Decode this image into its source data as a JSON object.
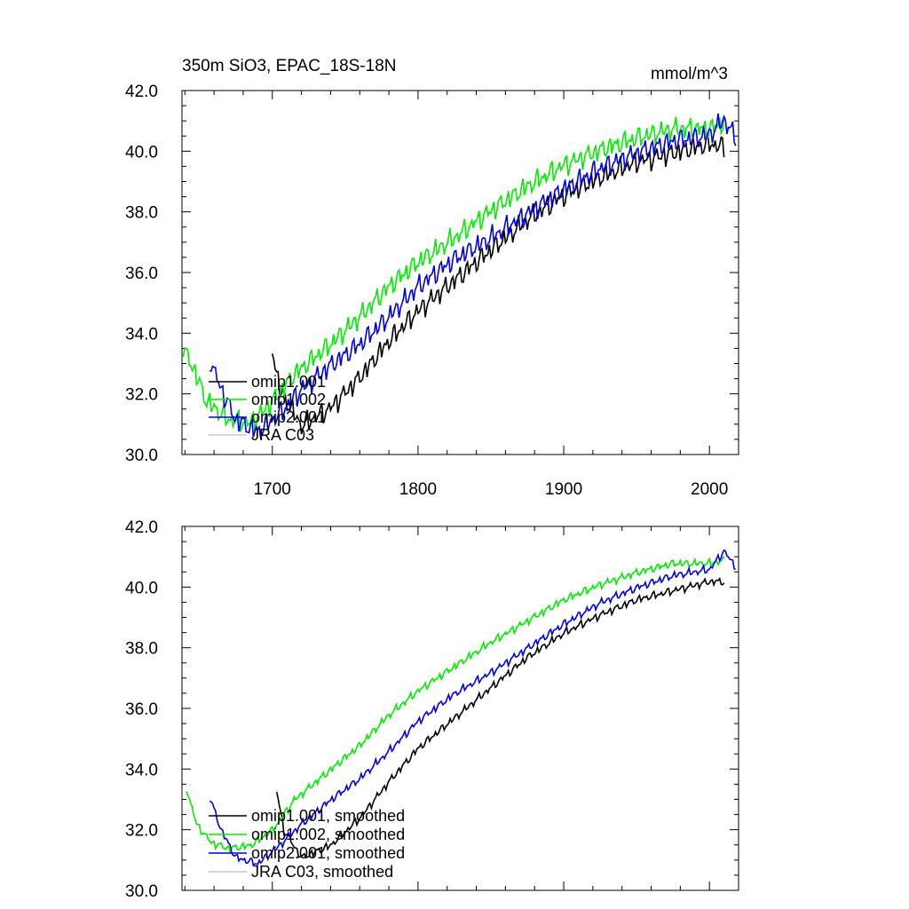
{
  "chart_data": [
    {
      "type": "line",
      "title": "350m SiO3, EPAC_18S-18N",
      "units": "mmol/m^3",
      "xlim": [
        1638,
        2020
      ],
      "ylim": [
        30,
        42
      ],
      "yticks": [
        "30.0",
        "32.0",
        "34.0",
        "36.0",
        "38.0",
        "40.0",
        "42.0"
      ],
      "xticks": [
        "1700",
        "1800",
        "1900",
        "2000"
      ],
      "legend_position": "lower-left",
      "series": [
        {
          "name": "omip1.001",
          "color": "#000000",
          "x_start": 1700,
          "x_end": 2010,
          "anchors": [
            [
              1700,
              33.6
            ],
            [
              1705,
              32.2
            ],
            [
              1720,
              31.0
            ],
            [
              1740,
              31.6
            ],
            [
              1760,
              32.6
            ],
            [
              1780,
              33.8
            ],
            [
              1800,
              34.8
            ],
            [
              1820,
              35.6
            ],
            [
              1850,
              36.8
            ],
            [
              1875,
              37.8
            ],
            [
              1900,
              38.6
            ],
            [
              1925,
              39.2
            ],
            [
              1950,
              39.7
            ],
            [
              1975,
              40.0
            ],
            [
              2000,
              40.3
            ],
            [
              2010,
              40.2
            ]
          ],
          "noise": 0.55
        },
        {
          "name": "omip1.002",
          "color": "#00ee00",
          "x_start": 1638,
          "x_end": 2010,
          "anchors": [
            [
              1638,
              33.6
            ],
            [
              1645,
              33.0
            ],
            [
              1655,
              31.8
            ],
            [
              1670,
              31.2
            ],
            [
              1685,
              31.1
            ],
            [
              1700,
              31.8
            ],
            [
              1715,
              32.7
            ],
            [
              1740,
              33.7
            ],
            [
              1760,
              34.6
            ],
            [
              1780,
              35.6
            ],
            [
              1800,
              36.4
            ],
            [
              1825,
              37.2
            ],
            [
              1850,
              38.1
            ],
            [
              1875,
              38.9
            ],
            [
              1900,
              39.6
            ],
            [
              1925,
              40.1
            ],
            [
              1950,
              40.5
            ],
            [
              1975,
              40.8
            ],
            [
              2000,
              40.8
            ],
            [
              2010,
              41.0
            ]
          ],
          "noise": 0.55
        },
        {
          "name": "omip2.001",
          "color": "#0000ee",
          "x_start": 1657,
          "x_end": 2018,
          "anchors": [
            [
              1657,
              33.2
            ],
            [
              1665,
              32.2
            ],
            [
              1675,
              31.2
            ],
            [
              1690,
              30.8
            ],
            [
              1705,
              31.4
            ],
            [
              1720,
              32.2
            ],
            [
              1740,
              33.0
            ],
            [
              1760,
              33.7
            ],
            [
              1780,
              34.6
            ],
            [
              1800,
              35.6
            ],
            [
              1825,
              36.5
            ],
            [
              1850,
              37.2
            ],
            [
              1875,
              38.0
            ],
            [
              1900,
              38.8
            ],
            [
              1925,
              39.5
            ],
            [
              1950,
              40.0
            ],
            [
              1975,
              40.4
            ],
            [
              2000,
              40.6
            ],
            [
              2010,
              41.1
            ],
            [
              2018,
              40.5
            ]
          ],
          "noise": 0.55
        },
        {
          "name": "JRA C03",
          "color": "#c8c8c8",
          "x_start": null,
          "x_end": null,
          "anchors": [],
          "noise": 0
        }
      ]
    },
    {
      "type": "line",
      "xlim": [
        1638,
        2020
      ],
      "ylim": [
        30,
        42
      ],
      "yticks": [
        "30.0",
        "32.0",
        "34.0",
        "36.0",
        "38.0",
        "40.0",
        "42.0"
      ],
      "legend_position": "lower-left",
      "series": [
        {
          "name": "omip1.001, smoothed",
          "color": "#000000",
          "x_start": 1703,
          "x_end": 2010,
          "anchors": [
            [
              1703,
              33.3
            ],
            [
              1708,
              32.0
            ],
            [
              1720,
              31.1
            ],
            [
              1740,
              31.5
            ],
            [
              1760,
              32.4
            ],
            [
              1780,
              33.6
            ],
            [
              1800,
              34.7
            ],
            [
              1820,
              35.5
            ],
            [
              1850,
              36.7
            ],
            [
              1875,
              37.7
            ],
            [
              1900,
              38.5
            ],
            [
              1925,
              39.1
            ],
            [
              1950,
              39.6
            ],
            [
              1975,
              39.9
            ],
            [
              2000,
              40.2
            ],
            [
              2010,
              40.2
            ]
          ],
          "noise": 0.2
        },
        {
          "name": "omip1.002, smoothed",
          "color": "#00ee00",
          "x_start": 1641,
          "x_end": 2010,
          "anchors": [
            [
              1641,
              33.4
            ],
            [
              1648,
              32.2
            ],
            [
              1658,
              31.6
            ],
            [
              1670,
              31.4
            ],
            [
              1685,
              31.5
            ],
            [
              1700,
              32.0
            ],
            [
              1715,
              33.0
            ],
            [
              1740,
              34.0
            ],
            [
              1760,
              34.8
            ],
            [
              1780,
              35.8
            ],
            [
              1800,
              36.6
            ],
            [
              1825,
              37.4
            ],
            [
              1850,
              38.2
            ],
            [
              1875,
              38.9
            ],
            [
              1900,
              39.6
            ],
            [
              1925,
              40.1
            ],
            [
              1950,
              40.5
            ],
            [
              1975,
              40.8
            ],
            [
              2000,
              40.8
            ],
            [
              2010,
              40.9
            ]
          ],
          "noise": 0.2
        },
        {
          "name": "omip2.001, smoothed",
          "color": "#0000ee",
          "x_start": 1657,
          "x_end": 2018,
          "anchors": [
            [
              1657,
              33.1
            ],
            [
              1665,
              32.0
            ],
            [
              1675,
              31.1
            ],
            [
              1690,
              30.9
            ],
            [
              1705,
              31.5
            ],
            [
              1720,
              32.2
            ],
            [
              1740,
              33.0
            ],
            [
              1760,
              33.7
            ],
            [
              1780,
              34.6
            ],
            [
              1800,
              35.6
            ],
            [
              1825,
              36.5
            ],
            [
              1850,
              37.2
            ],
            [
              1875,
              38.0
            ],
            [
              1900,
              38.8
            ],
            [
              1925,
              39.5
            ],
            [
              1950,
              40.0
            ],
            [
              1975,
              40.4
            ],
            [
              2000,
              40.6
            ],
            [
              2010,
              41.2
            ],
            [
              2018,
              40.7
            ]
          ],
          "noise": 0.2
        },
        {
          "name": "JRA C03, smoothed",
          "color": "#c8c8c8",
          "x_start": null,
          "x_end": null,
          "anchors": [],
          "noise": 0
        }
      ]
    }
  ]
}
